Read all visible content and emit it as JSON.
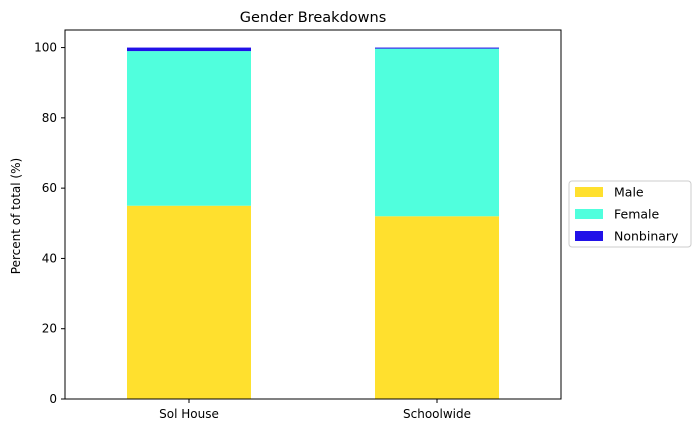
{
  "chart_data": {
    "type": "bar",
    "stacked": true,
    "title": "Gender Breakdowns",
    "xlabel": "",
    "ylabel": "Percent of total (%)",
    "categories": [
      "Sol House",
      "Schoolwide"
    ],
    "ylim": [
      0,
      105
    ],
    "yticks": [
      0,
      20,
      40,
      60,
      80,
      100
    ],
    "grid": false,
    "legend_position": "center-right-outside",
    "series": [
      {
        "name": "Male",
        "color": "#FFE02E",
        "values": [
          55.0,
          52.0
        ]
      },
      {
        "name": "Female",
        "color": "#50FFDD",
        "values": [
          44.0,
          47.7
        ]
      },
      {
        "name": "Nonbinary",
        "color": "#2111E8",
        "values": [
          1.0,
          0.3
        ]
      }
    ]
  }
}
